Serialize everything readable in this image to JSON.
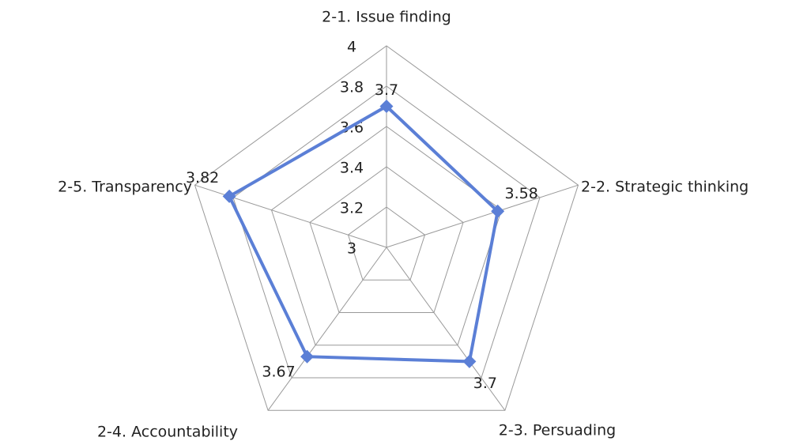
{
  "chart_data": {
    "type": "radar",
    "categories": [
      "2-1. Issue finding",
      "2-2. Strategic thinking",
      "2-3. Persuading",
      "2-4. Accountability",
      "2-5. Transparency"
    ],
    "values": [
      3.7,
      3.58,
      3.7,
      3.67,
      3.82
    ],
    "color": "#5b7fd6",
    "rlim": [
      3,
      4
    ],
    "rticks": [
      3,
      3.2,
      3.4,
      3.6,
      3.8,
      4
    ],
    "grid": true
  }
}
